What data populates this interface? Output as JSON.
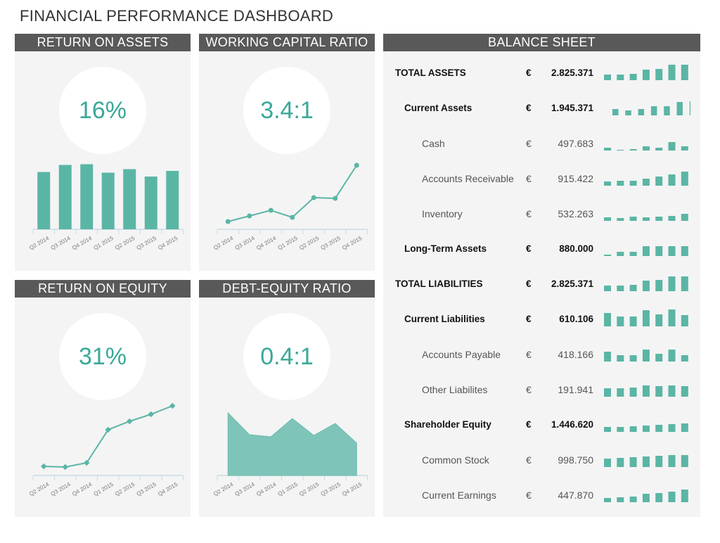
{
  "title": "FINANCIAL PERFORMANCE DASHBOARD",
  "colors": {
    "accent": "#5bb5a5",
    "header": "#595959",
    "panel": "#f4f4f4"
  },
  "roa": {
    "title": "RETURN ON ASSETS",
    "value": "16%"
  },
  "wcr": {
    "title": "WORKING CAPITAL RATIO",
    "value": "3.4:1"
  },
  "roe": {
    "title": "RETURN ON EQUITY",
    "value": "31%"
  },
  "der": {
    "title": "DEBT-EQUITY RATIO",
    "value": "0.4:1"
  },
  "chart_data": [
    {
      "id": "roa",
      "type": "bar",
      "categories": [
        "Q2 2014",
        "Q3 2014",
        "Q4 2014",
        "Q1 2015",
        "Q2 2015",
        "Q3 2015",
        "Q4 2015"
      ],
      "values": [
        16.3,
        18.3,
        18.5,
        16.1,
        17.1,
        15.0,
        16.6
      ],
      "ylim": [
        0,
        20
      ]
    },
    {
      "id": "wcr",
      "type": "line",
      "categories": [
        "Q2 2014",
        "Q3 2014",
        "Q4 2014",
        "Q1 2015",
        "Q2 2015",
        "Q3 2015",
        "Q4 2015"
      ],
      "values": [
        11,
        19,
        27,
        17,
        45,
        44,
        91
      ],
      "ylim": [
        0,
        100
      ]
    },
    {
      "id": "roe",
      "type": "line",
      "categories": [
        "Q2 2014",
        "Q3 2014",
        "Q4 2014",
        "Q1 2015",
        "Q2 2015",
        "Q3 2015",
        "Q4 2015"
      ],
      "values": [
        13,
        12,
        18,
        65,
        77,
        87,
        99
      ],
      "ylim": [
        0,
        100
      ]
    },
    {
      "id": "der",
      "type": "area",
      "categories": [
        "Q2 2014",
        "Q3 2014",
        "Q4 2014",
        "Q1 2015",
        "Q2 2015",
        "Q3 2015",
        "Q4 2015"
      ],
      "values": [
        89,
        58,
        55,
        81,
        57,
        74,
        46
      ],
      "ylim": [
        0,
        100
      ]
    }
  ],
  "balance": {
    "title": "BALANCE SHEET",
    "currency": "€",
    "rows": [
      {
        "label": "TOTAL ASSETS",
        "level": 0,
        "value": "2.825.371",
        "spark": [
          4,
          4,
          4.5,
          7.5,
          8,
          11,
          11
        ]
      },
      {
        "label": "Current Assets",
        "level": 1,
        "value": "1.945.371",
        "spark": [
          4.5,
          3.5,
          4.5,
          6.5,
          6.5,
          9.5,
          10
        ]
      },
      {
        "label": "Cash",
        "level": 2,
        "value": "497.683",
        "spark": [
          2,
          0.5,
          1,
          3,
          2,
          6,
          3
        ]
      },
      {
        "label": "Accounts Receivable",
        "level": 2,
        "value": "915.422",
        "spark": [
          3,
          3.5,
          3.5,
          5,
          6.5,
          8,
          10
        ]
      },
      {
        "label": "Inventory",
        "level": 2,
        "value": "532.263",
        "spark": [
          2.5,
          2,
          3,
          2.5,
          3,
          3.5,
          5
        ]
      },
      {
        "label": "Long-Term Assets",
        "level": 1,
        "value": "880.000",
        "spark": [
          1,
          3,
          3,
          7,
          7,
          7,
          7
        ]
      },
      {
        "label": "TOTAL LIABILITIES",
        "level": 0,
        "value": "2.825.371",
        "spark": [
          4,
          4,
          4.5,
          7.5,
          8,
          10.5,
          10.5
        ]
      },
      {
        "label": "Current Liabilities",
        "level": 1,
        "value": "610.106",
        "spark": [
          9.5,
          7,
          7,
          11.5,
          8.5,
          12,
          8
        ]
      },
      {
        "label": "Accounts Payable",
        "level": 2,
        "value": "418.166",
        "spark": [
          7,
          4.5,
          4.5,
          8.5,
          5.5,
          8.5,
          4.5
        ]
      },
      {
        "label": "Other Liabilites",
        "level": 2,
        "value": "191.941",
        "spark": [
          6,
          6,
          6.5,
          8,
          7.5,
          8,
          7.5
        ]
      },
      {
        "label": "Shareholder Equity",
        "level": 1,
        "value": "1.446.620",
        "spark": [
          3.5,
          3.5,
          4,
          4.5,
          5,
          5.5,
          6
        ]
      },
      {
        "label": "Common Stock",
        "level": 2,
        "value": "998.750",
        "spark": [
          6,
          6.5,
          7,
          7.5,
          8,
          8.5,
          8.5
        ]
      },
      {
        "label": "Current Earnings",
        "level": 2,
        "value": "447.870",
        "spark": [
          3,
          3.5,
          4,
          6,
          6.5,
          7.5,
          9
        ]
      }
    ]
  }
}
